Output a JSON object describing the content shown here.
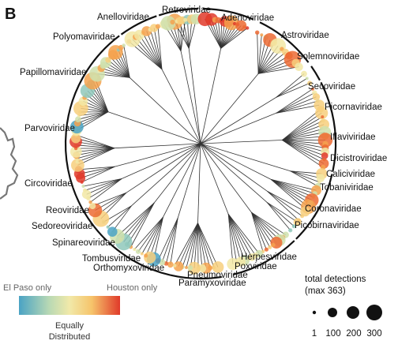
{
  "panel_letter": "B",
  "families": [
    "Retroviridae",
    "Adenoviridae",
    "Astroviridae",
    "Solemnoviridae",
    "Secoviridae",
    "Picornaviridae",
    "Iflaviviridae",
    "Dicistroviridae",
    "Caliciviridae",
    "Tobaniviridae",
    "Coronaviridae",
    "Picobirnaviridae",
    "Herpesviridae",
    "Poxviridae",
    "Pneumoviridae",
    "Paramyxoviridae",
    "Orthomyxoviridae",
    "Tombusviridae",
    "Spinareoviridae",
    "Sedoreoviridae",
    "Reoviridae",
    "Circoviridae",
    "Parvoviridae",
    "Papillomaviridae",
    "Polyomaviridae",
    "Anelloviridae"
  ],
  "color_legend": {
    "left_label": "El Paso only",
    "right_label": "Houston only",
    "center_label_line1": "Equally",
    "center_label_line2": "Distributed",
    "colors": [
      "#4aa3c4",
      "#8cc5b8",
      "#d8e1a8",
      "#f7e7a1",
      "#f7b55b",
      "#ef5a2b",
      "#e03a2a"
    ]
  },
  "size_legend": {
    "title_line1": "total detections",
    "title_line2": "(max 363)",
    "ticks": [
      "1",
      "100",
      "200",
      "300"
    ]
  }
}
